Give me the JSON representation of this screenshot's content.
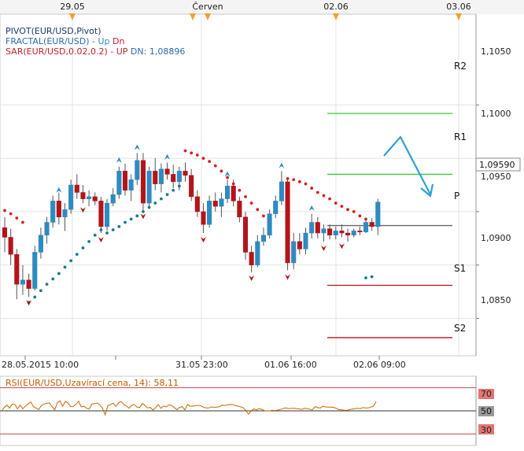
{
  "top_axis": {
    "labels": [
      "29.05",
      "Červen",
      "02.06",
      "03.06"
    ]
  },
  "legend": {
    "pivot": "PIVOT(EUR/USD,Pivot)",
    "fractal": "FRACTAL(EUR/USD) - ",
    "fractal_up": "Up",
    "fractal_dn": "Dn",
    "sar": "SAR(EUR/USD,0.02,0.2) - ",
    "sar_up": "UP",
    "sar_dn": "DN: 1,08896"
  },
  "price_axis": {
    "ticks": [
      "1,1050",
      "1,1000",
      "1,0950",
      "1,0900",
      "1,0850"
    ],
    "current_price": "1,09590"
  },
  "pivot_labels": [
    "R2",
    "R1",
    "P",
    "S1",
    "S2"
  ],
  "bottom_axis": {
    "labels": [
      "28.05.2015 10:00",
      "31.05 23:00",
      "01.06 16:00",
      "02.06 09:00"
    ]
  },
  "rsi": {
    "title": "RSI(EUR/USD,Uzavírací cena, 14): 58,11",
    "ticks": [
      "70",
      "50",
      "30"
    ]
  },
  "colors": {
    "bull": "#2e8bc0",
    "bear": "#b3141a",
    "sar": "#d42020",
    "sar_bull": "#1b7a8a",
    "resistance": "#33cc33",
    "support": "#b3141a",
    "pivot": "#666666",
    "arrow": "#2e9fd8",
    "rsi": "#cc6600"
  },
  "chart_data": {
    "type": "candlestick",
    "ylim": [
      1.0815,
      1.1135
    ],
    "levels": {
      "R2": 1.1042,
      "R1": 1.0985,
      "P": 1.0937,
      "S1": 1.0881,
      "S2": 1.0832
    },
    "candles": [
      [
        1.0935,
        1.0945,
        1.0912,
        1.0926
      ],
      [
        1.0926,
        1.0934,
        1.09,
        1.091
      ],
      [
        1.091,
        1.0915,
        1.0868,
        1.0882
      ],
      [
        1.0882,
        1.09,
        1.0872,
        1.0886
      ],
      [
        1.0886,
        1.0892,
        1.087,
        1.0878
      ],
      [
        1.0878,
        1.0918,
        1.0876,
        1.0912
      ],
      [
        1.0912,
        1.0935,
        1.0906,
        1.0928
      ],
      [
        1.0928,
        1.0945,
        1.092,
        1.094
      ],
      [
        1.094,
        1.0965,
        1.0935,
        1.096
      ],
      [
        1.096,
        1.0968,
        1.0938,
        1.0945
      ],
      [
        1.0945,
        1.0958,
        1.0932,
        1.0952
      ],
      [
        1.0952,
        1.098,
        1.0948,
        1.0975
      ],
      [
        1.0975,
        1.0985,
        1.0962,
        1.0968
      ],
      [
        1.0968,
        1.0975,
        1.0958,
        1.0962
      ],
      [
        1.0962,
        1.097,
        1.0955,
        1.0964
      ],
      [
        1.0964,
        1.0968,
        1.0956,
        1.096
      ],
      [
        1.096,
        1.0964,
        1.093,
        1.0936
      ],
      [
        1.0936,
        1.0962,
        1.0932,
        1.0958
      ],
      [
        1.0958,
        1.0972,
        1.0955,
        1.0966
      ],
      [
        1.0966,
        1.0992,
        1.0962,
        1.0988
      ],
      [
        1.0988,
        1.0995,
        1.0965,
        1.097
      ],
      [
        1.097,
        1.0985,
        1.096,
        1.098
      ],
      [
        1.098,
        1.1005,
        1.0975,
        1.0998
      ],
      [
        1.0998,
        1.1005,
        1.095,
        1.0958
      ],
      [
        1.0958,
        1.0992,
        1.0955,
        1.0988
      ],
      [
        1.0988,
        1.1,
        1.097,
        1.0976
      ],
      [
        1.0976,
        1.0995,
        1.0968,
        1.099
      ],
      [
        1.099,
        1.0996,
        1.098,
        1.0985
      ],
      [
        1.0985,
        1.0994,
        1.0972,
        1.0978
      ],
      [
        1.0978,
        1.0992,
        1.097,
        1.0988
      ],
      [
        1.0988,
        1.0996,
        1.0978,
        1.0984
      ],
      [
        1.0984,
        1.099,
        1.096,
        1.0964
      ],
      [
        1.0964,
        1.097,
        1.0945,
        1.095
      ],
      [
        1.095,
        1.0958,
        1.093,
        1.0938
      ],
      [
        1.0938,
        1.0965,
        1.0935,
        1.096
      ],
      [
        1.096,
        1.0968,
        1.095,
        1.0955
      ],
      [
        1.0955,
        1.0968,
        1.0945,
        1.0962
      ],
      [
        1.0962,
        1.098,
        1.0958,
        1.0974
      ],
      [
        1.0974,
        1.098,
        1.0955,
        1.096
      ],
      [
        1.096,
        1.0964,
        1.094,
        1.0945
      ],
      [
        1.0945,
        1.095,
        1.0905,
        1.0912
      ],
      [
        1.0912,
        1.0918,
        1.0893,
        1.09
      ],
      [
        1.09,
        1.0928,
        1.0898,
        1.0922
      ],
      [
        1.0922,
        1.0935,
        1.0918,
        1.0928
      ],
      [
        1.0928,
        1.0952,
        1.0925,
        1.0948
      ],
      [
        1.0948,
        1.0965,
        1.0944,
        1.096
      ],
      [
        1.096,
        1.0988,
        1.0956,
        1.0978
      ],
      [
        1.0978,
        1.0982,
        1.0895,
        1.0902
      ],
      [
        1.0902,
        1.093,
        1.0896,
        1.0922
      ],
      [
        1.0922,
        1.093,
        1.091,
        1.0915
      ],
      [
        1.0915,
        1.0935,
        1.091,
        1.093
      ],
      [
        1.093,
        1.0948,
        1.0925,
        1.094
      ],
      [
        1.094,
        1.0945,
        1.0925,
        1.093
      ],
      [
        1.093,
        1.0938,
        1.0922,
        1.0934
      ],
      [
        1.0934,
        1.0938,
        1.0924,
        1.0928
      ],
      [
        1.0928,
        1.0936,
        1.0924,
        1.0932
      ],
      [
        1.0932,
        1.0938,
        1.0926,
        1.093
      ],
      [
        1.093,
        1.0934,
        1.0922,
        1.0928
      ],
      [
        1.0928,
        1.0934,
        1.0926,
        1.0932
      ],
      [
        1.0932,
        1.0936,
        1.0928,
        1.0931
      ],
      [
        1.0931,
        1.0944,
        1.093,
        1.094
      ],
      [
        1.094,
        1.0944,
        1.0932,
        1.0936
      ],
      [
        1.0936,
        1.0962,
        1.0928,
        1.0959
      ]
    ],
    "sar_bull": [
      [
        4,
        1.0865
      ],
      [
        5,
        1.087
      ],
      [
        6,
        1.0876
      ],
      [
        7,
        1.0882
      ],
      [
        8,
        1.0887
      ],
      [
        9,
        1.0892
      ],
      [
        10,
        1.0898
      ],
      [
        11,
        1.0904
      ],
      [
        12,
        1.091
      ],
      [
        13,
        1.0916
      ],
      [
        14,
        1.0922
      ],
      [
        15,
        1.0928
      ],
      [
        16,
        1.0933
      ],
      [
        17,
        1.093
      ],
      [
        18,
        1.0933
      ],
      [
        19,
        1.0936
      ],
      [
        20,
        1.094
      ],
      [
        21,
        1.0943
      ],
      [
        22,
        1.0946
      ],
      [
        23,
        1.095
      ],
      [
        24,
        1.0954
      ],
      [
        25,
        1.0958
      ],
      [
        26,
        1.0962
      ],
      [
        27,
        1.0966
      ],
      [
        28,
        1.097
      ],
      [
        29,
        1.0974
      ],
      [
        60,
        1.0888
      ],
      [
        61,
        1.0889
      ]
    ],
    "sar_bear": [
      [
        0,
        1.0951
      ],
      [
        1,
        1.0948
      ],
      [
        2,
        1.0944
      ],
      [
        3,
        1.094
      ],
      [
        30,
        1.1007
      ],
      [
        31,
        1.1005
      ],
      [
        32,
        1.1003
      ],
      [
        33,
        1.1
      ],
      [
        34,
        1.0997
      ],
      [
        35,
        1.0993
      ],
      [
        36,
        1.0988
      ],
      [
        37,
        1.0982
      ],
      [
        38,
        1.0976
      ],
      [
        39,
        1.097
      ],
      [
        40,
        1.0964
      ],
      [
        41,
        1.0958
      ],
      [
        42,
        1.0952
      ],
      [
        43,
        1.0946
      ],
      [
        47,
        1.0981
      ],
      [
        48,
        1.098
      ],
      [
        49,
        1.0978
      ],
      [
        50,
        1.0976
      ],
      [
        51,
        1.0972
      ],
      [
        52,
        1.0968
      ],
      [
        53,
        1.0965
      ],
      [
        54,
        1.0962
      ],
      [
        55,
        1.0958
      ],
      [
        56,
        1.0955
      ],
      [
        57,
        1.0952
      ],
      [
        58,
        1.095
      ],
      [
        59,
        1.0946
      ],
      [
        60,
        1.0943
      ]
    ],
    "fractal_up": [
      [
        9,
        1.097
      ],
      [
        19,
        1.0998
      ],
      [
        22,
        1.101
      ],
      [
        27,
        1.1001
      ],
      [
        37,
        1.0985
      ],
      [
        46,
        1.0993
      ],
      [
        51,
        1.0953
      ]
    ],
    "fractal_dn": [
      [
        4,
        1.0865
      ],
      [
        13,
        1.0952
      ],
      [
        16,
        1.0924
      ],
      [
        23,
        1.0946
      ],
      [
        33,
        1.0924
      ],
      [
        41,
        1.0888
      ],
      [
        47,
        1.0889
      ],
      [
        53,
        1.0916
      ],
      [
        56,
        1.0918
      ]
    ],
    "forecast": [
      [
        1.0957,
        1.098
      ],
      [
        1.0987,
        1.098
      ],
      [
        1.1012,
        1.094
      ]
    ],
    "rsi": {
      "ylim": [
        20,
        80
      ],
      "upper": 70,
      "middle": 50,
      "lower": 30,
      "values": [
        50.0,
        53.0,
        55.0,
        52.4,
        55.8,
        55.6,
        51.7,
        55.0,
        51.8,
        54.1,
        56.0,
        57.7,
        53.7,
        52.3,
        51.2,
        54.6,
        55.9,
        56.7,
        56.9,
        53.9,
        50.9,
        57.0,
        58.7,
        53.9,
        58.2,
        56.8,
        53.6,
        53.9,
        55.6,
        58.3,
        53.4,
        54.1,
        52.3,
        51.6,
        55.8,
        56.3,
        56.8,
        55.3,
        52.2,
        46.5,
        54.5,
        55.3,
        56.6,
        53.9,
        56.8,
        58.1,
        55.4,
        54.2,
        52.3,
        54.7,
        55.5,
        53.2,
        52.8,
        56.5,
        54.5,
        52.6,
        53.0,
        50.7,
        52.7,
        55.3,
        52.2,
        54.2,
        53.5,
        55.2,
        54.7,
        52.9,
        51.0,
        52.9,
        53.7,
        50.9,
        55.5,
        54.0,
        54.1,
        54.5,
        54.8,
        54.5,
        53.2,
        52.6,
        52.5,
        53.4,
        53.1,
        53.3,
        53.5,
        55.0,
        54.6,
        55.1,
        55.5,
        55.4,
        54.7,
        54.1,
        53.5,
        52.8,
        50.1,
        47.2,
        50.0,
        51.7,
        50.8,
        51.9,
        51.3,
        50.2,
        49.8,
        50.1,
        50.5,
        50.3,
        50.7,
        51.2,
        51.9,
        52.6,
        52.0,
        52.1,
        52.3,
        52.0,
        51.7,
        51.3,
        52.1,
        52.0,
        51.5,
        50.8,
        53.7,
        52.8,
        52.5,
        54.0,
        53.4,
        53.3,
        53.2,
        53.1,
        52.2,
        51.0,
        50.8,
        50.5,
        50.5,
        51.1,
        51.6,
        51.9,
        52.2,
        52.0,
        52.8,
        52.5,
        52.5,
        53.3,
        53.9,
        58.1
      ]
    }
  }
}
